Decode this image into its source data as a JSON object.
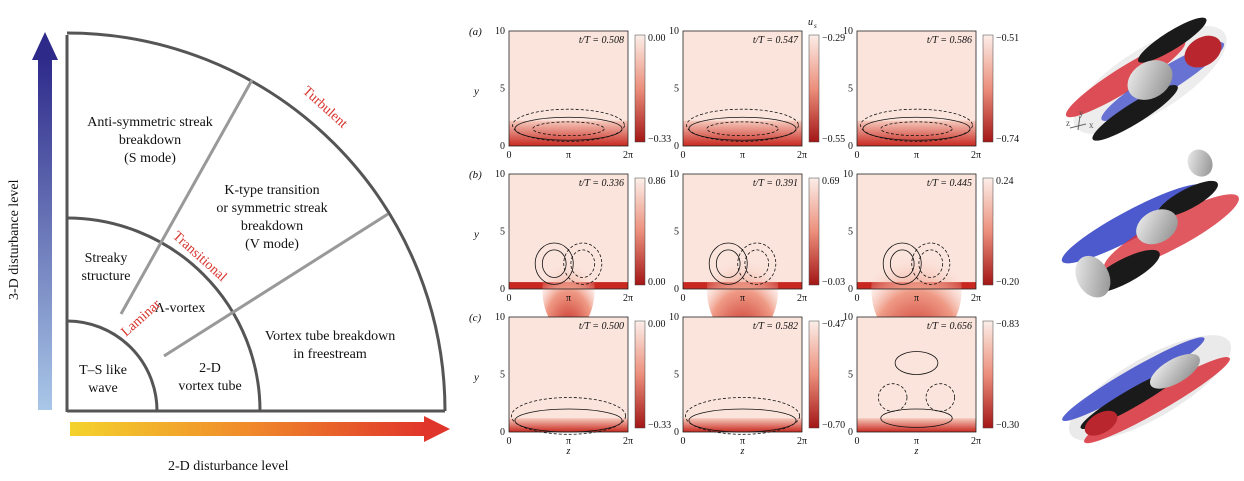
{
  "regime_map": {
    "y_axis_label": "3-D disturbance  level",
    "x_axis_label": "2-D disturbance level",
    "band_labels": {
      "laminar": "Laminar",
      "transitional": "Transitional",
      "turbulent": "Turbulent"
    },
    "regions": {
      "anti_symmetric": [
        "Anti-symmetric streak",
        "breakdown",
        "(S mode)"
      ],
      "k_type": [
        "K-type transition",
        "or symmetric streak",
        "breakdown",
        "(V mode)"
      ],
      "streaky": [
        "Streaky",
        "structure"
      ],
      "lambda_vortex": "Λ-vortex",
      "vortex_tube_breakdown": [
        "Vortex tube breakdown",
        "in freestream"
      ],
      "ts_wave": [
        "T–S like",
        "wave"
      ],
      "vortex_tube_2d": [
        "2-D",
        "vortex tube"
      ]
    }
  },
  "contour_panels": {
    "colorbar_title": "u",
    "colorbar_subscript": "s",
    "y_label": "y",
    "x_label": "z",
    "x_ticks": [
      "0",
      "π",
      "2π"
    ],
    "y_ticks": [
      "0",
      "5",
      "10"
    ],
    "rows": [
      {
        "tag": "(a)",
        "panels": [
          {
            "time": "t/T = 0.508",
            "cmax": "0.00",
            "cmin": "−0.33"
          },
          {
            "time": "t/T =  0.547",
            "cmax": "−0.29",
            "cmin": "−0.55"
          },
          {
            "time": "t/T = 0.586",
            "cmax": "−0.51",
            "cmin": "−0.74"
          }
        ]
      },
      {
        "tag": "(b)",
        "panels": [
          {
            "time": "t/T = 0.336",
            "cmax": "0.86",
            "cmin": "0.00"
          },
          {
            "time": "t/T = 0.391",
            "cmax": "0.69",
            "cmin": "−0.03"
          },
          {
            "time": "t/T = 0.445",
            "cmax": "0.24",
            "cmin": "−0.20"
          }
        ]
      },
      {
        "tag": "(c)",
        "panels": [
          {
            "time": "t/T = 0.500",
            "cmax": "0.00",
            "cmin": "−0.33"
          },
          {
            "time": "t/T = 0.582",
            "cmax": "−0.47",
            "cmin": "−0.70"
          },
          {
            "time": "t/T = 0.656",
            "cmax": "−0.83",
            "cmin": "−0.30"
          }
        ]
      }
    ]
  },
  "iso_axes_letters": {
    "x": "x",
    "y": "y",
    "z": "z"
  },
  "colors": {
    "accent_red": "#d8322c",
    "arrow_blue": "#3b3aa0",
    "arrow_yellow": "#f2cb2a",
    "iso_blue": "#3a48c8",
    "iso_red": "#d8303a"
  }
}
